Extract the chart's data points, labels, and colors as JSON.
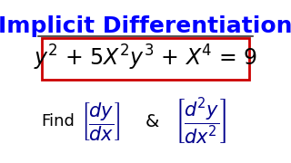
{
  "title": "Implicit Differentiation",
  "title_color": "#0000FF",
  "title_fontsize": 18,
  "equation": "y$^{2}$ + 5X$^{2}$y$^{3}$ + X$^{4}$ = 9",
  "equation_color": "#000000",
  "equation_fontsize": 17,
  "box_edge_color": "#CC0000",
  "find_text": "Find",
  "find_color": "#000000",
  "find_fontsize": 13,
  "ampersand": "&",
  "amp_color": "#000000",
  "amp_fontsize": 14,
  "deriv1_num": "dy",
  "deriv1_den": "dx",
  "deriv2_num": "d$^{2}$y",
  "deriv2_den": "dx$^{2}$",
  "deriv_color": "#000000",
  "bracket_color": "#00008B",
  "background_color": "#FFFFFF",
  "line_color": "#333333",
  "deriv_fontsize": 13
}
